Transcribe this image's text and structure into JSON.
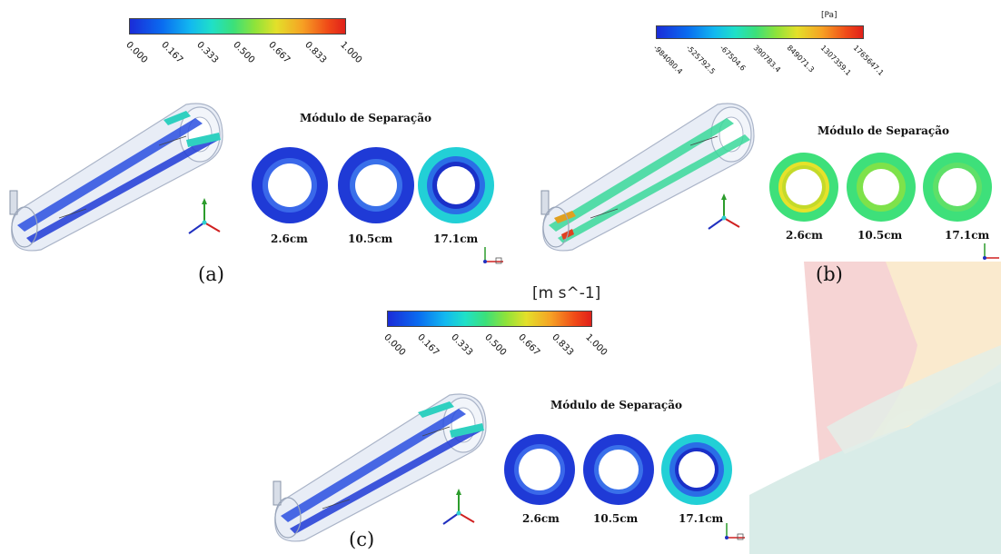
{
  "colors": {
    "blue": "#1a2bd8",
    "cyan": "#1fd8e0",
    "green": "#3be07a",
    "yellow": "#e3e02a",
    "red": "#e0201a",
    "deco_red": "#f6d4d4",
    "deco_yellow": "#fbeccd",
    "deco_teal": "#d9ece8"
  },
  "panels": [
    {
      "label": "(a)",
      "colorbar": {
        "unit": "",
        "ticks": [
          "0.000",
          "0.167",
          "0.333",
          "0.500",
          "0.667",
          "0.833",
          "1.000"
        ]
      },
      "module_title": "Módulo de Separação",
      "rings": [
        "2.6cm",
        "10.5cm",
        "17.1cm"
      ]
    },
    {
      "label": "(b)",
      "colorbar": {
        "unit": "[Pa]",
        "ticks": [
          "-984080.4",
          "-525792.5",
          "-67504.6",
          "390783.4",
          "849071.3",
          "1307359.1",
          "1765647.1"
        ]
      },
      "module_title": "Módulo de Separação",
      "rings": [
        "2.6cm",
        "10.5cm",
        "17.1cm"
      ]
    },
    {
      "label": "(c)",
      "colorbar": {
        "unit": "[m s^-1]",
        "ticks": [
          "0.000",
          "0.167",
          "0.333",
          "0.500",
          "0.667",
          "0.833",
          "1.000"
        ]
      },
      "module_title": "Módulo de Separação",
      "rings": [
        "2.6cm",
        "10.5cm",
        "17.1cm"
      ]
    }
  ]
}
